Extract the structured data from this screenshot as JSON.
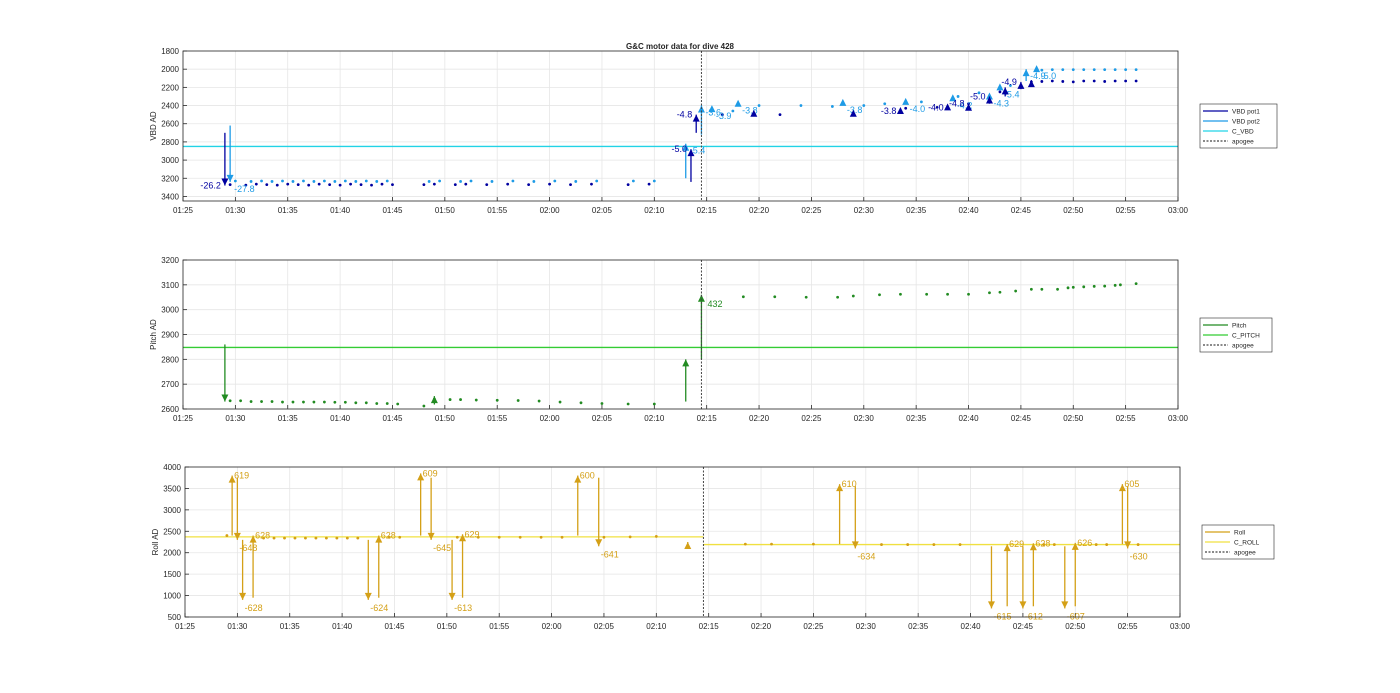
{
  "figure_title": "G&C motor data for dive 428",
  "colors": {
    "vbd_pot1": "#0000a0",
    "vbd_pot2": "#1e9be6",
    "c_vbd": "#22d3e6",
    "pitch": "#228b22",
    "c_pitch": "#33cc33",
    "roll": "#d4a017",
    "c_roll": "#f0e040",
    "apogee": "#444444",
    "grid": "#e6e6e6",
    "axis": "#262626"
  },
  "chart_data": [
    {
      "type": "line",
      "id": "vbd",
      "title": "G&C motor data for dive 428",
      "ylabel": "VBD AD",
      "xlabel": "",
      "ylim": [
        1800,
        3450
      ],
      "y_reversed": true,
      "xlim": [
        "01:25",
        "03:00"
      ],
      "grid": true,
      "legend_position": "right",
      "yticks": [
        1800,
        2000,
        2200,
        2400,
        2600,
        2800,
        3000,
        3200,
        3400
      ],
      "ytick_labels": [
        "1800",
        "2000",
        "2200",
        "2400",
        "2600",
        "2800",
        "3000",
        "3200",
        "3400"
      ],
      "xticks": [
        "01:25",
        "01:30",
        "01:35",
        "01:40",
        "01:45",
        "01:50",
        "01:55",
        "02:00",
        "02:05",
        "02:10",
        "02:15",
        "02:20",
        "02:25",
        "02:30",
        "02:35",
        "02:40",
        "02:45",
        "02:50",
        "02:55",
        "03:00"
      ],
      "legend": [
        "VBD pot1",
        "VBD pot2",
        "C_VBD",
        "apogee"
      ],
      "reference_line": {
        "name": "C_VBD",
        "value": 2850
      },
      "apogee_time": "02:14.5",
      "pot1_samples": {
        "times": [
          "01:29.5",
          "01:31",
          "01:32",
          "01:33",
          "01:34",
          "01:35",
          "01:36",
          "01:37",
          "01:38",
          "01:39",
          "01:40",
          "01:41",
          "01:42",
          "01:43",
          "01:44",
          "01:45",
          "01:48",
          "01:49",
          "01:51",
          "01:52",
          "01:54",
          "01:56",
          "01:58",
          "02:00",
          "02:02",
          "02:04",
          "02:07.5",
          "02:09.5",
          "02:16.5",
          "02:22",
          "02:34",
          "02:37",
          "02:40",
          "02:43",
          "02:46",
          "02:47",
          "02:48",
          "02:49",
          "02:50",
          "02:51",
          "02:52",
          "02:53",
          "02:54",
          "02:55",
          "02:56"
        ],
        "values": [
          3270,
          3275,
          3265,
          3270,
          3275,
          3265,
          3270,
          3275,
          3265,
          3270,
          3275,
          3265,
          3270,
          3275,
          3265,
          3270,
          3270,
          3265,
          3270,
          3265,
          3270,
          3265,
          3270,
          3265,
          3270,
          3265,
          3270,
          3265,
          2500,
          2500,
          2430,
          2420,
          2380,
          2250,
          2140,
          2135,
          2130,
          2135,
          2140,
          2130,
          2130,
          2135,
          2130,
          2130,
          2130
        ]
      },
      "pot2_samples": {
        "times": [
          "01:30",
          "01:31.5",
          "01:32.5",
          "01:33.5",
          "01:34.5",
          "01:35.5",
          "01:36.5",
          "01:37.5",
          "01:38.5",
          "01:39.5",
          "01:40.5",
          "01:41.5",
          "01:42.5",
          "01:43.5",
          "01:44.5",
          "01:48.5",
          "01:49.5",
          "01:51.5",
          "01:52.5",
          "01:54.5",
          "01:56.5",
          "01:58.5",
          "02:00.5",
          "02:02.5",
          "02:04.5",
          "02:08",
          "02:10",
          "02:17.5",
          "02:20",
          "02:24",
          "02:27",
          "02:30",
          "02:32",
          "02:35.5",
          "02:39",
          "02:41",
          "02:44",
          "02:47",
          "02:48",
          "02:49",
          "02:50",
          "02:51",
          "02:52",
          "02:53",
          "02:54",
          "02:55",
          "02:56"
        ],
        "values": [
          3230,
          3235,
          3230,
          3235,
          3230,
          3235,
          3230,
          3235,
          3230,
          3235,
          3230,
          3235,
          3230,
          3235,
          3230,
          3235,
          3230,
          3235,
          3230,
          3235,
          3230,
          3235,
          3230,
          3235,
          3230,
          3230,
          3230,
          2460,
          2400,
          2400,
          2410,
          2400,
          2380,
          2360,
          2300,
          2260,
          2180,
          2010,
          2005,
          2005,
          2005,
          2005,
          2005,
          2005,
          2005,
          2005,
          2005
        ]
      },
      "pot1_events": [
        {
          "time": "01:29",
          "from": 2700,
          "to": 3280,
          "label": "-26.2"
        },
        {
          "time": "02:13.5",
          "from": 3240,
          "to": 2880,
          "label": "-5.0"
        },
        {
          "time": "02:14",
          "from": 2700,
          "to": 2500,
          "label": "-4.8"
        },
        {
          "time": "02:19.5",
          "from": 2490,
          "to": 2490,
          "label": ""
        },
        {
          "time": "02:29",
          "from": 2490,
          "to": 2490,
          "label": ""
        },
        {
          "time": "02:33.5",
          "from": 2460,
          "to": 2460,
          "label": "-3.8"
        },
        {
          "time": "02:38",
          "from": 2420,
          "to": 2420,
          "label": "-4.0"
        },
        {
          "time": "02:40",
          "from": 2420,
          "to": 2380,
          "label": "-4.8"
        },
        {
          "time": "02:42",
          "from": 2380,
          "to": 2300,
          "label": "-5.0"
        },
        {
          "time": "02:43.5",
          "from": 2300,
          "to": 2200,
          "label": ""
        },
        {
          "time": "02:45",
          "from": 2220,
          "to": 2140,
          "label": "-4.9"
        },
        {
          "time": "02:46",
          "from": 2180,
          "to": 2120,
          "label": ""
        }
      ],
      "pot2_events": [
        {
          "time": "01:29.5",
          "from": 2620,
          "to": 3240,
          "label": "-27.8"
        },
        {
          "time": "02:13",
          "from": 3200,
          "to": 2820,
          "label": "-5.4"
        },
        {
          "time": "02:14.5",
          "from": 2720,
          "to": 2400,
          "label": "-3.6"
        },
        {
          "time": "02:15.5",
          "from": 2440,
          "to": 2440,
          "label": "-3.9"
        },
        {
          "time": "02:18",
          "from": 2380,
          "to": 2380,
          "label": "-3.8"
        },
        {
          "time": "02:28",
          "from": 2370,
          "to": 2370,
          "label": "-3.8"
        },
        {
          "time": "02:34",
          "from": 2360,
          "to": 2360,
          "label": "-4.0"
        },
        {
          "time": "02:38.5",
          "from": 2320,
          "to": 2320,
          "label": "-4.2"
        },
        {
          "time": "02:42",
          "from": 2300,
          "to": 2300,
          "label": "-4.3"
        },
        {
          "time": "02:43",
          "from": 2200,
          "to": 2200,
          "label": "-5.4"
        },
        {
          "time": "02:45.5",
          "from": 2130,
          "to": 2000,
          "label": "-4.9"
        },
        {
          "time": "02:46.5",
          "from": 2000,
          "to": 2000,
          "label": "-5.0"
        }
      ]
    },
    {
      "type": "line",
      "id": "pitch",
      "title": "",
      "ylabel": "Pitch AD",
      "xlabel": "",
      "ylim": [
        2600,
        3200
      ],
      "xlim": [
        "01:25",
        "03:00"
      ],
      "grid": true,
      "legend_position": "right",
      "yticks": [
        2600,
        2700,
        2800,
        2900,
        3000,
        3100,
        3200
      ],
      "ytick_labels": [
        "2600",
        "2700",
        "2800",
        "2900",
        "3000",
        "3100",
        "3200"
      ],
      "xticks": [
        "01:25",
        "01:30",
        "01:35",
        "01:40",
        "01:45",
        "01:50",
        "01:55",
        "02:00",
        "02:05",
        "02:10",
        "02:15",
        "02:20",
        "02:25",
        "02:30",
        "02:35",
        "02:40",
        "02:45",
        "02:50",
        "02:55",
        "03:00"
      ],
      "legend": [
        "Pitch",
        "C_PITCH",
        "apogee"
      ],
      "reference_line": {
        "name": "C_PITCH",
        "value": 2848
      },
      "apogee_time": "02:14.5",
      "samples": {
        "times": [
          "01:29.5",
          "01:30.5",
          "01:31.5",
          "01:32.5",
          "01:33.5",
          "01:34.5",
          "01:35.5",
          "01:36.5",
          "01:37.5",
          "01:38.5",
          "01:39.5",
          "01:40.5",
          "01:41.5",
          "01:42.5",
          "01:43.5",
          "01:44.5",
          "01:45.5",
          "01:48",
          "01:49",
          "01:50.5",
          "01:51.5",
          "01:53",
          "01:55",
          "01:57",
          "01:59",
          "02:01",
          "02:03",
          "02:05",
          "02:07.5",
          "02:10",
          "02:18.5",
          "02:21.5",
          "02:24.5",
          "02:27.5",
          "02:29",
          "02:31.5",
          "02:33.5",
          "02:36",
          "02:38",
          "02:40",
          "02:42",
          "02:43",
          "02:44.5",
          "02:46",
          "02:47",
          "02:48.5",
          "02:49.5",
          "02:50",
          "02:51",
          "02:52",
          "02:53",
          "02:54",
          "02:54.5",
          "02:56"
        ],
        "values": [
          2633,
          2633,
          2630,
          2630,
          2630,
          2628,
          2628,
          2628,
          2628,
          2628,
          2627,
          2627,
          2625,
          2625,
          2622,
          2622,
          2620,
          2612,
          2640,
          2638,
          2638,
          2636,
          2635,
          2634,
          2632,
          2628,
          2625,
          2622,
          2620,
          2620,
          3052,
          3052,
          3050,
          3050,
          3055,
          3060,
          3062,
          3062,
          3062,
          3062,
          3068,
          3070,
          3075,
          3082,
          3082,
          3082,
          3088,
          3090,
          3092,
          3094,
          3095,
          3098,
          3100,
          3105
        ]
      },
      "events": [
        {
          "time": "01:29",
          "from": 2860,
          "to": 2630,
          "label": ""
        },
        {
          "time": "01:49",
          "from": 2618,
          "to": 2652,
          "label": ""
        },
        {
          "time": "02:13",
          "from": 2630,
          "to": 2800,
          "label": ""
        },
        {
          "time": "02:14.5",
          "from": 2800,
          "to": 3060,
          "label": "432"
        }
      ]
    },
    {
      "type": "line",
      "id": "roll",
      "title": "",
      "ylabel": "Roll AD",
      "xlabel": "",
      "ylim": [
        500,
        4000
      ],
      "xlim": [
        "01:25",
        "03:00"
      ],
      "grid": true,
      "legend_position": "right",
      "yticks": [
        500,
        1000,
        1500,
        2000,
        2500,
        3000,
        3500,
        4000
      ],
      "ytick_labels": [
        "500",
        "1000",
        "1500",
        "2000",
        "2500",
        "3000",
        "3500",
        "4000"
      ],
      "xticks": [
        "01:25",
        "01:30",
        "01:35",
        "01:40",
        "01:45",
        "01:50",
        "01:55",
        "02:00",
        "02:05",
        "02:10",
        "02:15",
        "02:20",
        "02:25",
        "02:30",
        "02:35",
        "02:40",
        "02:45",
        "02:50",
        "02:55",
        "03:00"
      ],
      "legend": [
        "Roll",
        "C_ROLL",
        "apogee"
      ],
      "reference_lines": [
        {
          "name": "C_ROLL",
          "from": "01:25",
          "to": "02:14.5",
          "value": 2370
        },
        {
          "name": "C_ROLL",
          "from": "02:14.5",
          "to": "03:00",
          "value": 2190
        }
      ],
      "apogee_time": "02:14.5",
      "samples": {
        "times": [
          "01:29",
          "01:32.5",
          "01:33.5",
          "01:34.5",
          "01:35.5",
          "01:36.5",
          "01:37.5",
          "01:38.5",
          "01:39.5",
          "01:40.5",
          "01:41.5",
          "01:44.5",
          "01:45.5",
          "01:51",
          "01:53",
          "01:55",
          "01:57",
          "01:59",
          "02:01",
          "02:05",
          "02:07.5",
          "02:10",
          "02:18.5",
          "02:21",
          "02:25",
          "02:31.5",
          "02:34",
          "02:36.5",
          "02:39",
          "02:47",
          "02:48",
          "02:52",
          "02:53",
          "02:56"
        ],
        "values": [
          2400,
          2340,
          2340,
          2340,
          2340,
          2340,
          2340,
          2340,
          2340,
          2340,
          2340,
          2360,
          2360,
          2360,
          2360,
          2360,
          2360,
          2360,
          2360,
          2360,
          2370,
          2380,
          2200,
          2200,
          2200,
          2190,
          2190,
          2190,
          2190,
          2190,
          2190,
          2190,
          2190,
          2190
        ]
      },
      "events": [
        {
          "time": "01:29.5",
          "from": 2400,
          "to": 3800,
          "label": "619"
        },
        {
          "time": "01:30",
          "from": 3750,
          "to": 2300,
          "label": "-648"
        },
        {
          "time": "01:30.5",
          "from": 2300,
          "to": 900,
          "label": "-628"
        },
        {
          "time": "01:31.5",
          "from": 950,
          "to": 2400,
          "label": "628"
        },
        {
          "time": "01:42.5",
          "from": 2300,
          "to": 900,
          "label": "-624"
        },
        {
          "time": "01:43.5",
          "from": 950,
          "to": 2400,
          "label": "628"
        },
        {
          "time": "01:47.5",
          "from": 2400,
          "to": 3850,
          "label": "609"
        },
        {
          "time": "01:48.5",
          "from": 3750,
          "to": 2300,
          "label": "-645"
        },
        {
          "time": "01:50.5",
          "from": 2300,
          "to": 900,
          "label": "-613"
        },
        {
          "time": "01:51.5",
          "from": 950,
          "to": 2430,
          "label": "629"
        },
        {
          "time": "02:02.5",
          "from": 2400,
          "to": 3800,
          "label": "600"
        },
        {
          "time": "02:04.5",
          "from": 3750,
          "to": 2150,
          "label": "-641"
        },
        {
          "time": "02:13",
          "from": 2150,
          "to": 2250,
          "label": ""
        },
        {
          "time": "02:27.5",
          "from": 2200,
          "to": 3600,
          "label": "610"
        },
        {
          "time": "02:29",
          "from": 3550,
          "to": 2100,
          "label": "-634"
        },
        {
          "time": "02:42",
          "from": 2150,
          "to": 700,
          "label": "-615"
        },
        {
          "time": "02:43.5",
          "from": 750,
          "to": 2200,
          "label": "629"
        },
        {
          "time": "02:45",
          "from": 2150,
          "to": 700,
          "label": "-612"
        },
        {
          "time": "02:46",
          "from": 750,
          "to": 2220,
          "label": "628"
        },
        {
          "time": "02:49",
          "from": 2150,
          "to": 700,
          "label": "-607"
        },
        {
          "time": "02:50",
          "from": 750,
          "to": 2230,
          "label": "626"
        },
        {
          "time": "02:54.5",
          "from": 2200,
          "to": 3600,
          "label": "605"
        },
        {
          "time": "02:55",
          "from": 3550,
          "to": 2100,
          "label": "-630"
        }
      ]
    }
  ]
}
